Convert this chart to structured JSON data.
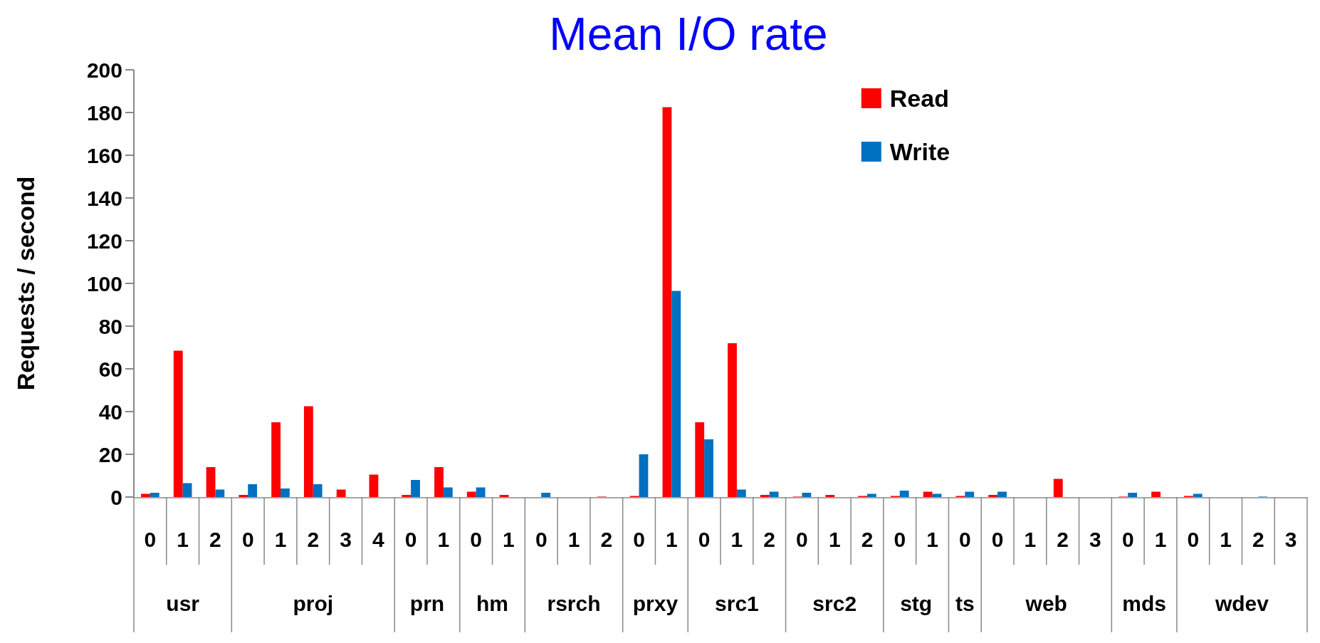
{
  "chart_data": {
    "type": "bar",
    "title": "Mean I/O rate",
    "ylabel": "Requests / second",
    "categories": [
      "0",
      "1",
      "2",
      "0",
      "1",
      "2",
      "3",
      "4",
      "0",
      "1",
      "0",
      "1",
      "0",
      "1",
      "2",
      "0",
      "1",
      "0",
      "1",
      "2",
      "0",
      "1",
      "2",
      "0",
      "1",
      "0",
      "0",
      "1",
      "2",
      "3",
      "0",
      "1",
      "0",
      "1",
      "2",
      "3"
    ],
    "annotations": [
      "usr",
      "proj",
      "prn",
      "hm",
      "rsrch",
      "prxy",
      "src1",
      "src2",
      "stg",
      "ts",
      "web",
      "mds",
      "wdev"
    ],
    "series": [
      {
        "name": "Read",
        "color": "#ff0000",
        "values": [
          1.5,
          68.5,
          14,
          1,
          35,
          42.5,
          3.5,
          10.5,
          1,
          14,
          2.5,
          1,
          0,
          0,
          0.2,
          0.5,
          182.5,
          35,
          72,
          1,
          0.2,
          1,
          0.5,
          0.5,
          2.5,
          0.5,
          1,
          0,
          8.5,
          0,
          0.2,
          2.5,
          0.5,
          0,
          0,
          0
        ]
      },
      {
        "name": "Write",
        "color": "#0070c0",
        "values": [
          2,
          6.5,
          3.5,
          6,
          4,
          6,
          0,
          0,
          8,
          4.5,
          4.5,
          0,
          2,
          0,
          0,
          20,
          96.5,
          27,
          3.5,
          2.5,
          2,
          0,
          1.5,
          3,
          1.5,
          2.5,
          2.5,
          0,
          0,
          0,
          2,
          0,
          1.5,
          0,
          0.2,
          0
        ]
      }
    ],
    "ylim": [
      0,
      200
    ],
    "yticks": [
      0,
      20,
      40,
      60,
      80,
      100,
      120,
      140,
      160,
      180,
      200
    ],
    "grid": false,
    "legend": "top right"
  }
}
